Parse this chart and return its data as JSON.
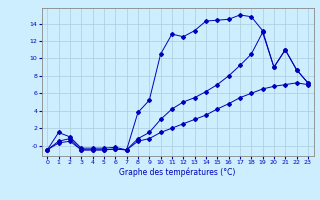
{
  "xlabel": "Graphe des températures (°C)",
  "bg_color": "#cceeff",
  "grid_color": "#aaccdd",
  "line_color": "#0000bb",
  "xlim": [
    -0.5,
    23.5
  ],
  "ylim": [
    -1.2,
    15.8
  ],
  "xticks": [
    0,
    1,
    2,
    3,
    4,
    5,
    6,
    7,
    8,
    9,
    10,
    11,
    12,
    13,
    14,
    15,
    16,
    17,
    18,
    19,
    20,
    21,
    22,
    23
  ],
  "yticks": [
    0,
    2,
    4,
    6,
    8,
    10,
    12,
    14
  ],
  "ytick_labels": [
    "-0",
    "2",
    "4",
    "6",
    "8",
    "10",
    "12",
    "14"
  ],
  "series1_x": [
    0,
    1,
    2,
    3,
    4,
    5,
    6,
    7,
    8,
    9,
    10,
    11,
    12,
    13,
    14,
    15,
    16,
    17,
    18,
    19,
    20,
    21,
    22,
    23
  ],
  "series1_y": [
    -0.5,
    1.5,
    1.0,
    -0.3,
    -0.3,
    -0.3,
    -0.2,
    -0.5,
    3.8,
    5.2,
    10.5,
    12.8,
    12.5,
    13.2,
    14.3,
    14.4,
    14.5,
    15.0,
    14.8,
    13.2,
    9.0,
    11.0,
    8.7,
    7.2
  ],
  "series2_x": [
    0,
    1,
    2,
    3,
    4,
    5,
    6,
    7,
    8,
    9,
    10,
    11,
    12,
    13,
    14,
    15,
    16,
    17,
    18,
    19,
    20,
    21,
    22,
    23
  ],
  "series2_y": [
    -0.5,
    0.5,
    0.8,
    -0.5,
    -0.5,
    -0.5,
    -0.4,
    -0.5,
    0.8,
    1.5,
    3.0,
    4.2,
    5.0,
    5.5,
    6.2,
    7.0,
    8.0,
    9.2,
    10.5,
    13.0,
    9.0,
    11.0,
    8.7,
    7.2
  ],
  "series3_x": [
    0,
    1,
    2,
    3,
    4,
    5,
    6,
    7,
    8,
    9,
    10,
    11,
    12,
    13,
    14,
    15,
    16,
    17,
    18,
    19,
    20,
    21,
    22,
    23
  ],
  "series3_y": [
    -0.5,
    0.3,
    0.5,
    -0.5,
    -0.5,
    -0.5,
    -0.4,
    -0.5,
    0.5,
    0.8,
    1.5,
    2.0,
    2.5,
    3.0,
    3.5,
    4.2,
    4.8,
    5.5,
    6.0,
    6.5,
    6.8,
    7.0,
    7.2,
    7.0
  ]
}
